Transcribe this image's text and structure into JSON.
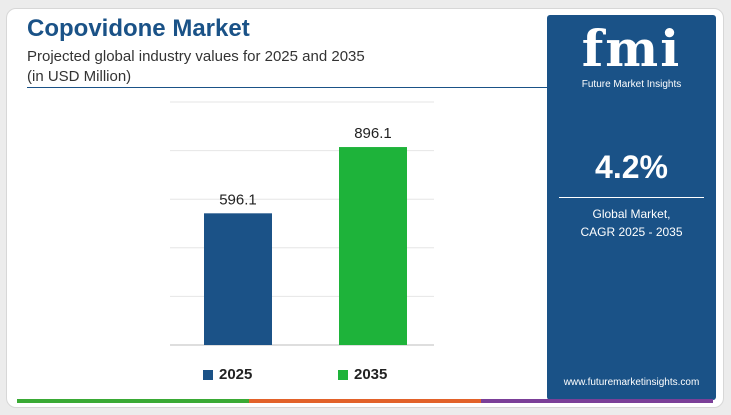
{
  "header": {
    "title": "Copovidone Market",
    "subtitle_line1": "Projected global industry values for 2025 and 2035",
    "subtitle_line2": "(in USD Million)"
  },
  "sidebar": {
    "logo_mark": "fmi",
    "logo_text": "Future Market Insights",
    "cagr_value": "4.2%",
    "cagr_line1": "Global Market,",
    "cagr_line2": "CAGR 2025 - 2035",
    "website": "www.futuremarketinsights.com"
  },
  "colors": {
    "brand_blue": "#1a5287",
    "bar_2025": "#1b5287",
    "bar_2035": "#1eb33a",
    "bottom_bar": [
      "#3aaa35",
      "#e2622a",
      "#7b3f98"
    ]
  },
  "chart_data": {
    "type": "bar",
    "categories": [
      "2025",
      "2035"
    ],
    "values": [
      596.1,
      896.1
    ],
    "data_labels": [
      "596.1",
      "896.1"
    ],
    "ylim": [
      0,
      1100
    ],
    "grid": true,
    "legend_position": "bottom",
    "series": [
      {
        "name": "2025",
        "color": "#1b5287"
      },
      {
        "name": "2035",
        "color": "#1eb33a"
      }
    ]
  }
}
